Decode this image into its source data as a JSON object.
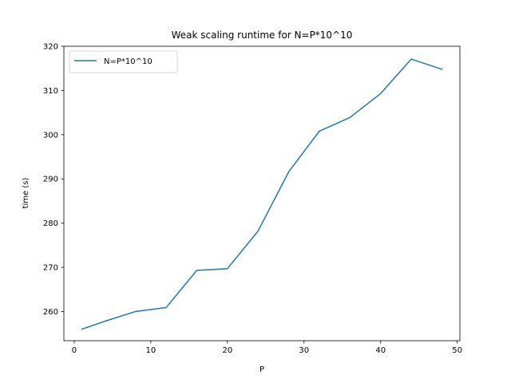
{
  "chart_data": {
    "type": "line",
    "title": "Weak scaling runtime for N=P*10^10",
    "xlabel": "P",
    "ylabel": "time (s)",
    "xlim": [
      -1.35,
      50.35
    ],
    "ylim": [
      253.4,
      320.0
    ],
    "xticks": [
      0,
      10,
      20,
      30,
      40,
      50
    ],
    "yticks": [
      260,
      270,
      280,
      290,
      300,
      310,
      320
    ],
    "grid": false,
    "legend_position": "upper-left",
    "series": [
      {
        "name": "N=P*10^10",
        "color": "#1f77b4",
        "x": [
          1,
          4,
          8,
          12,
          16,
          20,
          24,
          28,
          32,
          36,
          40,
          44,
          48
        ],
        "y": [
          256.0,
          257.8,
          260.0,
          260.9,
          269.3,
          269.7,
          278.2,
          291.6,
          300.8,
          303.9,
          309.3,
          317.1,
          314.8
        ]
      }
    ]
  }
}
